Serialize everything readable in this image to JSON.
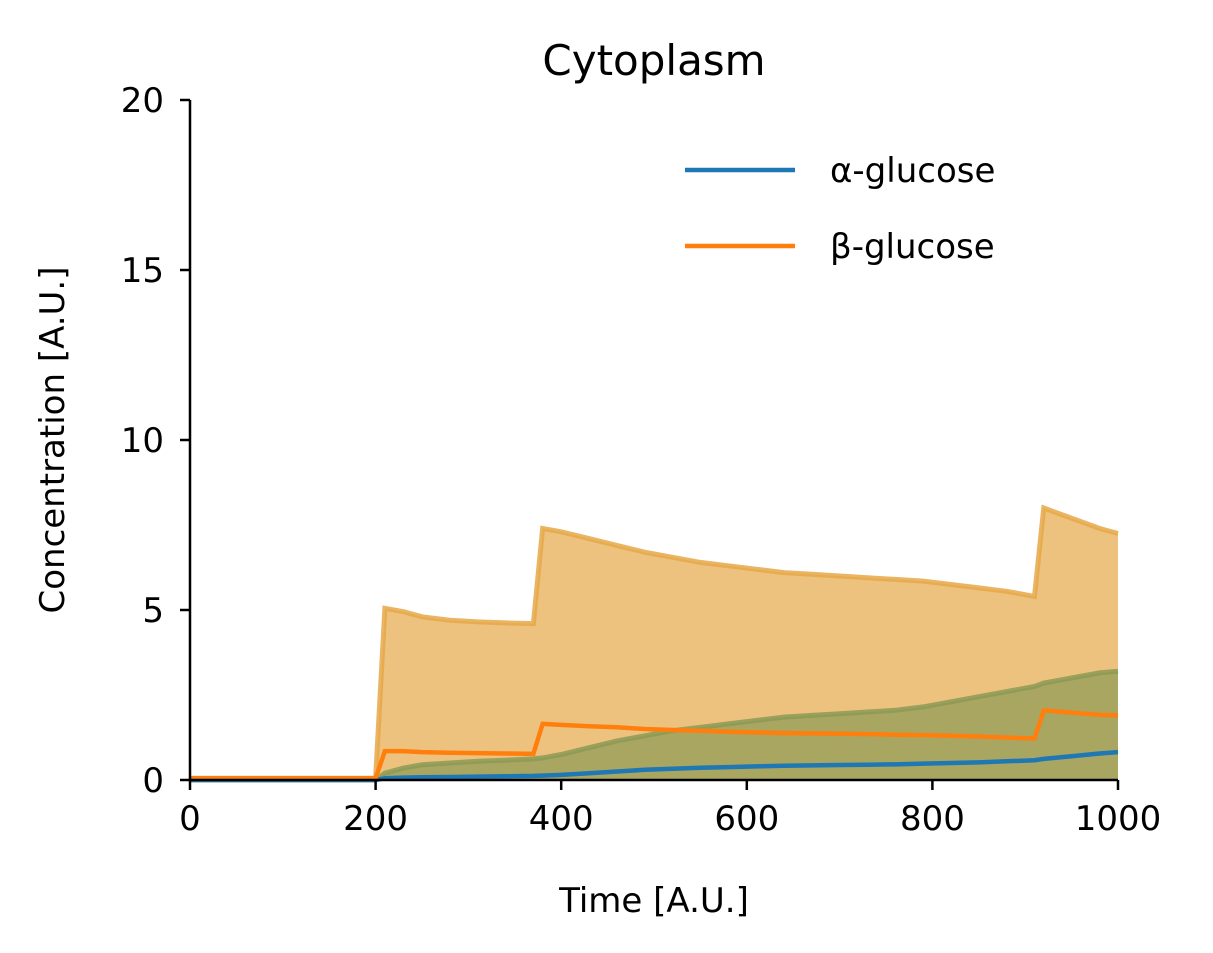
{
  "chart_data": {
    "type": "area",
    "title": "Cytoplasm",
    "xlabel": "Time [A.U.]",
    "ylabel": "Concentration [A.U.]",
    "xlim": [
      0,
      1000
    ],
    "ylim": [
      0,
      20
    ],
    "xticks": [
      "0",
      "200",
      "400",
      "600",
      "800",
      "1000"
    ],
    "yticks": [
      "0",
      "5",
      "10",
      "15",
      "20"
    ],
    "grid": false,
    "legend_position": "top-right",
    "x": [
      0,
      200,
      210,
      230,
      250,
      280,
      310,
      340,
      370,
      380,
      400,
      430,
      460,
      490,
      520,
      550,
      580,
      610,
      640,
      670,
      700,
      730,
      760,
      790,
      820,
      850,
      880,
      910,
      920,
      950,
      980,
      1000
    ],
    "series": [
      {
        "name": "α-glucose",
        "color": "#1f77b4",
        "values": [
          0,
          0,
          0.05,
          0.07,
          0.08,
          0.09,
          0.1,
          0.11,
          0.12,
          0.13,
          0.15,
          0.2,
          0.25,
          0.3,
          0.33,
          0.36,
          0.38,
          0.4,
          0.42,
          0.43,
          0.44,
          0.45,
          0.46,
          0.48,
          0.5,
          0.52,
          0.55,
          0.58,
          0.62,
          0.7,
          0.78,
          0.82
        ],
        "band": {
          "color": "#8c9a55",
          "lower": [
            0,
            0,
            0,
            0,
            0,
            0,
            0,
            0,
            0,
            0,
            0,
            0,
            0,
            0,
            0,
            0,
            0,
            0,
            0,
            0,
            0,
            0,
            0,
            0,
            0,
            0,
            0,
            0,
            0,
            0,
            0,
            0
          ],
          "upper": [
            0,
            0,
            0.2,
            0.35,
            0.45,
            0.5,
            0.55,
            0.58,
            0.62,
            0.65,
            0.75,
            0.95,
            1.15,
            1.3,
            1.45,
            1.55,
            1.65,
            1.75,
            1.85,
            1.9,
            1.95,
            2.0,
            2.05,
            2.15,
            2.3,
            2.45,
            2.6,
            2.75,
            2.85,
            3.0,
            3.15,
            3.2
          ]
        }
      },
      {
        "name": "β-glucose",
        "color": "#ff7f0e",
        "values": [
          0.05,
          0.05,
          0.85,
          0.85,
          0.82,
          0.8,
          0.79,
          0.78,
          0.77,
          1.65,
          1.62,
          1.58,
          1.55,
          1.5,
          1.47,
          1.45,
          1.42,
          1.4,
          1.38,
          1.37,
          1.36,
          1.35,
          1.33,
          1.32,
          1.3,
          1.28,
          1.25,
          1.22,
          2.05,
          1.98,
          1.92,
          1.9
        ],
        "band": {
          "color": "#e6a848",
          "lower": [
            0,
            0,
            0,
            0,
            0,
            0,
            0,
            0,
            0,
            0,
            0,
            0,
            0,
            0,
            0,
            0,
            0,
            0,
            0,
            0,
            0,
            0,
            0,
            0,
            0,
            0,
            0,
            0,
            0,
            0,
            0,
            0
          ],
          "upper": [
            0.05,
            0.05,
            5.05,
            4.95,
            4.8,
            4.7,
            4.65,
            4.62,
            4.6,
            7.4,
            7.3,
            7.1,
            6.9,
            6.7,
            6.55,
            6.4,
            6.3,
            6.2,
            6.1,
            6.05,
            6.0,
            5.95,
            5.9,
            5.85,
            5.75,
            5.65,
            5.55,
            5.4,
            8.0,
            7.7,
            7.4,
            7.25
          ]
        }
      }
    ]
  }
}
